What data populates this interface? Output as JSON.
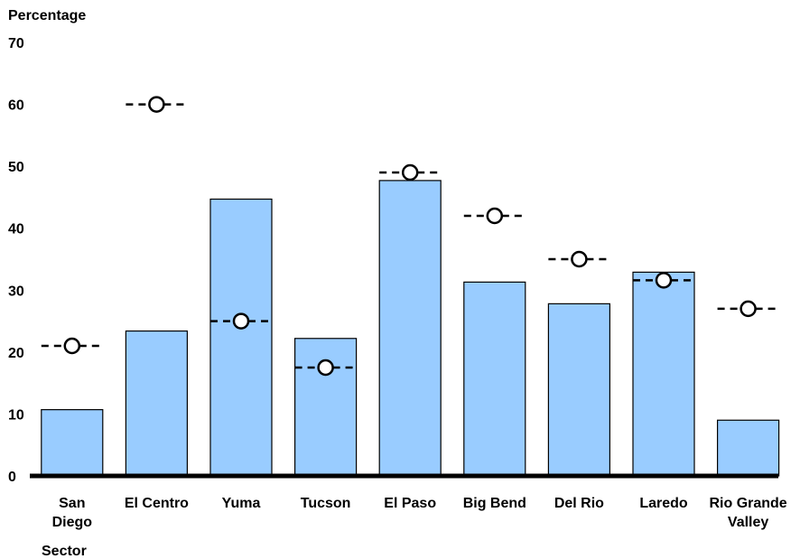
{
  "chart_data": {
    "type": "bar",
    "ylabel": "Percentage",
    "xlabel": "Sector",
    "ylim": [
      0,
      70
    ],
    "yticks": [
      "0",
      "10",
      "20",
      "30",
      "40",
      "50",
      "60",
      "70"
    ],
    "categories": [
      [
        "San",
        "Diego"
      ],
      [
        "El Centro"
      ],
      [
        "Yuma"
      ],
      [
        "Tucson"
      ],
      [
        "El Paso"
      ],
      [
        "Big Bend"
      ],
      [
        "Del Rio"
      ],
      [
        "Laredo"
      ],
      [
        "Rio Grande",
        "Valley"
      ]
    ],
    "series": [
      {
        "type": "bar",
        "values": [
          10.7,
          23.4,
          44.7,
          22.2,
          47.7,
          31.3,
          27.8,
          32.9,
          9.0
        ]
      },
      {
        "type": "marker",
        "values": [
          21.0,
          60.0,
          25.0,
          17.5,
          49.0,
          42.0,
          35.0,
          31.6,
          27.0
        ]
      }
    ],
    "grid": false,
    "colors": {
      "bar_fill": "#99CCFF",
      "bar_stroke": "#000000",
      "marker_fill": "#ffffff",
      "axis": "#000000"
    }
  }
}
